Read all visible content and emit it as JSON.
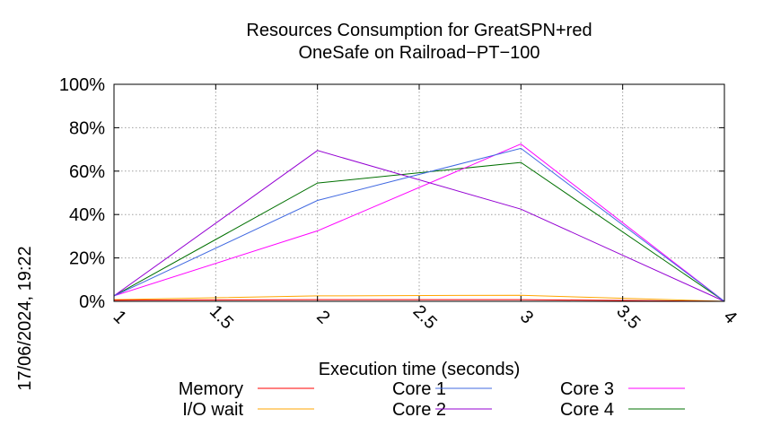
{
  "timestamp": "17/06/2024, 19:22",
  "chart_data": {
    "type": "line",
    "title": "Resources Consumption for GreatSPN+red",
    "subtitle": "OneSafe on Railroad−PT−100",
    "xlabel": "Execution time (seconds)",
    "ylabel": "",
    "x": [
      1,
      2,
      3,
      4
    ],
    "xlim": [
      1,
      4
    ],
    "ylim": [
      0,
      100
    ],
    "x_ticks": [
      "1",
      "1.5",
      "2",
      "2.5",
      "3",
      "3.5",
      "4"
    ],
    "y_ticks": [
      "0%",
      "20%",
      "40%",
      "60%",
      "80%",
      "100%"
    ],
    "grid": true,
    "legend_position": "bottom",
    "series": [
      {
        "name": "Memory",
        "color": "#ff0000",
        "values": [
          0.5,
          0.8,
          0.8,
          0
        ]
      },
      {
        "name": "I/O wait",
        "color": "#ffa500",
        "values": [
          0.8,
          2.5,
          2.8,
          0
        ]
      },
      {
        "name": "Core 1",
        "color": "#4169e1",
        "values": [
          2.5,
          46.5,
          70.5,
          0
        ]
      },
      {
        "name": "Core 2",
        "color": "#9400d3",
        "values": [
          2.5,
          69.5,
          42.5,
          0
        ]
      },
      {
        "name": "Core 3",
        "color": "#ff00ff",
        "values": [
          2.5,
          32.5,
          72.5,
          0
        ]
      },
      {
        "name": "Core 4",
        "color": "#007000",
        "values": [
          2.5,
          54.5,
          64,
          0
        ]
      }
    ]
  }
}
